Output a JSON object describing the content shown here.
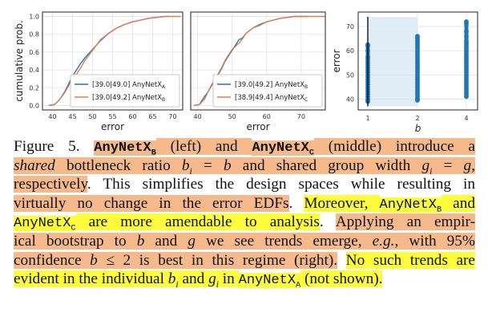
{
  "chart_data": [
    {
      "type": "line",
      "xlabel": "error",
      "ylabel": "cumulative prob.",
      "xlim": [
        37.5,
        72.5
      ],
      "ylim": [
        -0.05,
        1.05
      ],
      "xticks": [
        "40",
        "45",
        "50",
        "55",
        "60",
        "65",
        "70"
      ],
      "yticks": [
        "0.0",
        "0.2",
        "0.4",
        "0.6",
        "0.8",
        "1.0"
      ],
      "grid": true,
      "legend_position": "bottom-right",
      "series": [
        {
          "name": "[39.0|49.0] AnyNetX",
          "name_sub": "A",
          "color": "#1f77b4",
          "x": [
            39,
            40.5,
            41,
            42,
            43,
            44,
            45,
            46,
            47,
            48,
            49,
            50,
            52,
            54,
            56,
            58,
            60,
            62,
            64,
            66,
            68,
            69
          ],
          "y": [
            0,
            0.01,
            0.03,
            0.08,
            0.15,
            0.24,
            0.33,
            0.4,
            0.47,
            0.53,
            0.58,
            0.63,
            0.73,
            0.81,
            0.87,
            0.91,
            0.94,
            0.96,
            0.98,
            0.99,
            1.0,
            1.0
          ]
        },
        {
          "name": "[39.0|49.2] AnyNetX",
          "name_sub": "B",
          "color": "#e07b54",
          "x": [
            39,
            40.5,
            41,
            42,
            43,
            44,
            45,
            46,
            47,
            48,
            49,
            50,
            52,
            54,
            56,
            58,
            60,
            62,
            64,
            66,
            68,
            72
          ],
          "y": [
            0,
            0.01,
            0.03,
            0.08,
            0.14,
            0.22,
            0.3,
            0.35,
            0.42,
            0.5,
            0.56,
            0.62,
            0.74,
            0.81,
            0.87,
            0.91,
            0.94,
            0.96,
            0.98,
            0.99,
            1.0,
            1.0
          ]
        }
      ]
    },
    {
      "type": "line",
      "xlabel": "error",
      "ylabel": "",
      "xlim": [
        38,
        77
      ],
      "ylim": [
        -0.05,
        1.05
      ],
      "xticks": [
        "40",
        "50",
        "60",
        "70"
      ],
      "grid": true,
      "legend_position": "bottom-right",
      "series": [
        {
          "name": "[39.0|49.2] AnyNetX",
          "name_sub": "B",
          "color": "#1f77b4",
          "x": [
            39,
            40.5,
            41,
            42,
            43,
            44,
            45,
            46,
            47,
            48,
            49,
            50,
            52,
            53,
            54,
            56,
            58,
            60,
            62,
            64,
            66,
            68,
            72
          ],
          "y": [
            0,
            0.01,
            0.04,
            0.1,
            0.15,
            0.22,
            0.3,
            0.35,
            0.42,
            0.5,
            0.56,
            0.62,
            0.74,
            0.76,
            0.81,
            0.87,
            0.91,
            0.94,
            0.96,
            0.98,
            0.99,
            1.0,
            1.0
          ]
        },
        {
          "name": "[38.9|49.4] AnyNetX",
          "name_sub": "C",
          "color": "#e07b54",
          "x": [
            38.9,
            40.5,
            41,
            42,
            43,
            44,
            45,
            46,
            47,
            48,
            49,
            50,
            52,
            53,
            54,
            56,
            58,
            60,
            62,
            64,
            66,
            68,
            77
          ],
          "y": [
            0,
            0.01,
            0.03,
            0.07,
            0.15,
            0.23,
            0.3,
            0.36,
            0.43,
            0.51,
            0.57,
            0.63,
            0.7,
            0.75,
            0.81,
            0.87,
            0.9,
            0.94,
            0.96,
            0.98,
            0.99,
            1.0,
            1.0
          ]
        }
      ]
    },
    {
      "type": "scatter",
      "xlabel": "b",
      "ylabel": "error",
      "ylim": [
        35.5,
        76
      ],
      "categories": [
        "1",
        "2",
        "4"
      ],
      "yticks": [
        "40",
        "50",
        "60",
        "70"
      ],
      "grid": true,
      "color": "#1f77b4",
      "shaded_range": [
        "1",
        "2"
      ],
      "confidence_interval_b1": [
        37,
        74
      ],
      "values": {
        "1": [
          39,
          39.5,
          40,
          41,
          42,
          43,
          44,
          45,
          46,
          47,
          48,
          49,
          50,
          51,
          52,
          53,
          54,
          55,
          56,
          57,
          57.5,
          60,
          62,
          62.5
        ],
        "2": [
          39.5,
          40,
          41,
          42,
          43,
          44,
          45,
          46,
          47,
          48,
          49,
          50,
          51,
          52,
          53,
          54,
          55,
          56,
          57,
          58,
          59,
          60,
          61,
          62,
          63,
          64,
          65,
          66
        ],
        "4": [
          41,
          42,
          43,
          44,
          45,
          46,
          47,
          48,
          49,
          50,
          51,
          52,
          53,
          54,
          55,
          56,
          57,
          58,
          59,
          60,
          61,
          62,
          63,
          64,
          66,
          68,
          71,
          72
        ]
      }
    }
  ],
  "caption": {
    "lines": [
      [
        {
          "t": "Figure 5. ",
          "f": "",
          "h": ""
        },
        {
          "t": "AnyNetX",
          "s": "B",
          "f": "bmono",
          "h": "orange"
        },
        {
          "t": " (left) and ",
          "f": "",
          "h": "orange"
        },
        {
          "t": "AnyNetX",
          "s": "C",
          "f": "bmono",
          "h": "orange"
        },
        {
          "t": " (middle) introduce a",
          "f": "",
          "h": "orange"
        }
      ],
      [
        {
          "t": "shared",
          "f": "it",
          "h": "orange"
        },
        {
          "t": " bottleneck ratio ",
          "f": "",
          "h": "orange"
        },
        {
          "t": "b",
          "s": "i",
          "f": "it",
          "h": "orange"
        },
        {
          "t": " = ",
          "f": "",
          "h": "orange"
        },
        {
          "t": "b",
          "f": "it",
          "h": "orange"
        },
        {
          "t": " and shared group width ",
          "f": "",
          "h": "orange"
        },
        {
          "t": "g",
          "s": "i",
          "f": "it",
          "h": "orange"
        },
        {
          "t": " = ",
          "f": "",
          "h": "orange"
        },
        {
          "t": "g",
          "f": "it",
          "h": "orange"
        },
        {
          "t": ",",
          "f": "",
          "h": "orange"
        }
      ],
      [
        {
          "t": "respectively",
          "f": "",
          "h": "orange"
        },
        {
          "t": ".  This simplifies the design spaces while resulting in",
          "f": "",
          "h": ""
        }
      ],
      [
        {
          "t": "virtually no change in the error EDFs",
          "f": "",
          "h": "orange"
        },
        {
          "t": ". ",
          "f": "",
          "h": ""
        },
        {
          "t": "Moreover, ",
          "f": "",
          "h": "yellow"
        },
        {
          "t": "AnyNetX",
          "s": "B",
          "f": "mono",
          "h": "yellow"
        },
        {
          "t": " and",
          "f": "",
          "h": "yellow"
        }
      ],
      [
        {
          "t": "AnyNetX",
          "s": "C",
          "f": "mono",
          "h": "yellow"
        },
        {
          "t": " are more amendable to analysis",
          "f": "",
          "h": "yellow"
        },
        {
          "t": ".  ",
          "f": "",
          "h": ""
        },
        {
          "t": "Applying an empir-",
          "f": "",
          "h": "orange"
        }
      ],
      [
        {
          "t": "ical bootstrap to ",
          "f": "",
          "h": "orange"
        },
        {
          "t": "b",
          "f": "it",
          "h": "orange"
        },
        {
          "t": " and ",
          "f": "",
          "h": "orange"
        },
        {
          "t": "g",
          "f": "it",
          "h": "orange"
        },
        {
          "t": " we see trends emerge, ",
          "f": "",
          "h": "orange"
        },
        {
          "t": "e.g.",
          "f": "it",
          "h": "orange"
        },
        {
          "t": ", with 95%",
          "f": "",
          "h": "orange"
        }
      ],
      [
        {
          "t": "confidence ",
          "f": "",
          "h": "orange"
        },
        {
          "t": "b",
          "f": "it",
          "h": "orange"
        },
        {
          "t": " ≤ 2 is best in this regime (right).",
          "f": "",
          "h": "orange"
        },
        {
          "t": " ",
          "f": "",
          "h": ""
        },
        {
          "t": "No such trends are",
          "f": "",
          "h": "yellow"
        }
      ],
      [
        {
          "t": "evident in the individual ",
          "f": "",
          "h": "yellow"
        },
        {
          "t": "b",
          "s": "i",
          "f": "it",
          "h": "yellow"
        },
        {
          "t": " and ",
          "f": "",
          "h": "yellow"
        },
        {
          "t": "g",
          "s": "i",
          "f": "it",
          "h": "yellow"
        },
        {
          "t": " in ",
          "f": "",
          "h": "yellow"
        },
        {
          "t": "AnyNetX",
          "s": "A",
          "f": "mono",
          "h": "yellow"
        },
        {
          "t": " (not shown).",
          "f": "",
          "h": "yellow"
        }
      ]
    ]
  }
}
